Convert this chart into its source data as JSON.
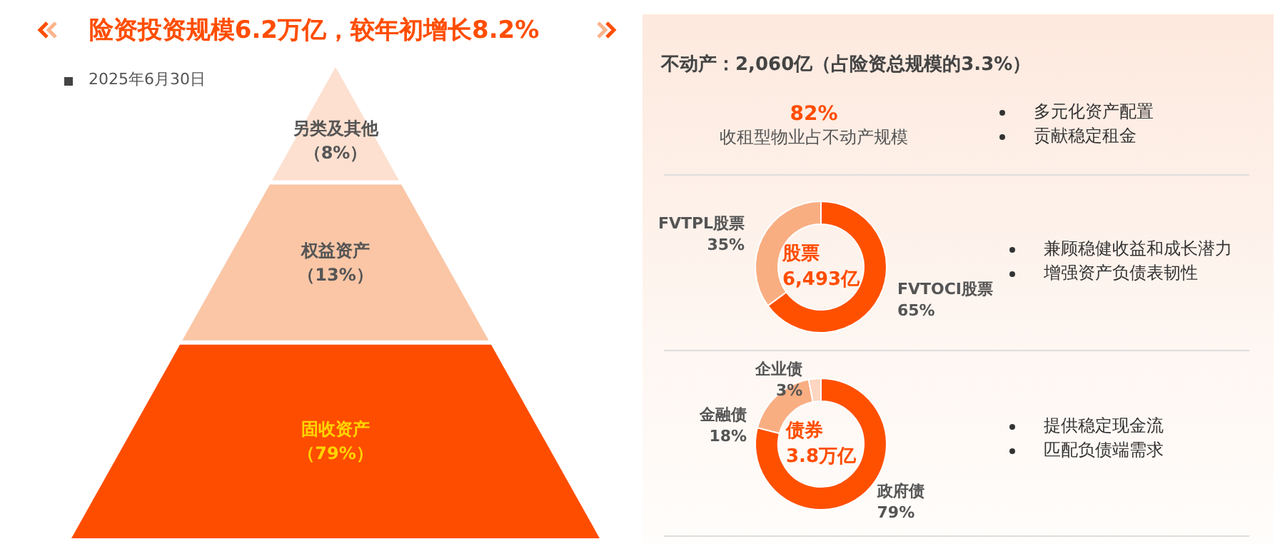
{
  "chart_data": [
    {
      "type": "other",
      "title": "险资投资规模6.2万亿，较年初增长8.2%",
      "subtitle": "2025年6月30日",
      "categories": [
        "另类及其他",
        "权益资产",
        "固收资产"
      ],
      "values": [
        8,
        13,
        79
      ],
      "value_labels": [
        "（8%）",
        "（13%）",
        "（79%）"
      ],
      "colors": [
        "#fde0d0",
        "#fac6a6",
        "#ff4d00"
      ]
    },
    {
      "type": "other",
      "title": "不动产：2,060亿（占险资总规模的3.3%）",
      "annotations": [
        "82%",
        "收租型物业占不动产规模",
        "多元化资产配置",
        "贡献稳定租金"
      ]
    },
    {
      "type": "donut",
      "categories": [
        "FVTOCI股票",
        "FVTPL股票"
      ],
      "values": [
        65,
        35
      ],
      "value_labels": [
        "65%",
        "35%"
      ],
      "colors": [
        "#ff5000",
        "#f9ae82"
      ],
      "annotations": [
        "股票",
        "6,493亿",
        "兼顾稳健收益和成长潜力",
        "增强资产负债表韧性"
      ]
    },
    {
      "type": "donut",
      "categories": [
        "政府债",
        "金融债",
        "企业债"
      ],
      "values": [
        79,
        18,
        3
      ],
      "value_labels": [
        "79%",
        "18%",
        "3%"
      ],
      "colors": [
        "#ff5000",
        "#f9ae82",
        "#fcd6c0"
      ],
      "annotations": [
        "债券",
        "3.8万亿",
        "提供稳定现金流",
        "匹配负债端需求"
      ]
    }
  ]
}
